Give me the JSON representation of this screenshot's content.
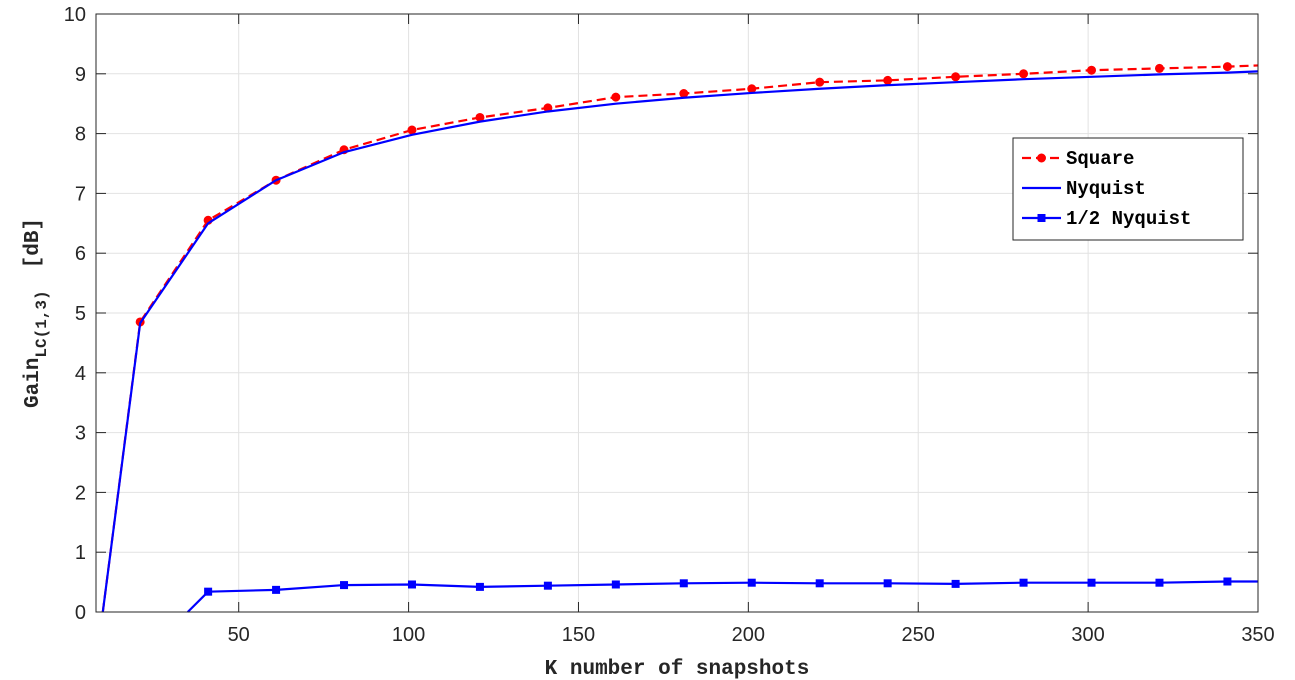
{
  "chart_data": {
    "type": "line",
    "title": "",
    "xlabel": "K number of snapshots",
    "ylabel_main": "Gain",
    "ylabel_sub": "LC(1,3)",
    "ylabel_unit": "[dB]",
    "xlim": [
      8,
      350
    ],
    "ylim": [
      0,
      10
    ],
    "xticks": [
      50,
      100,
      150,
      200,
      250,
      300,
      350
    ],
    "yticks": [
      0,
      1,
      2,
      3,
      4,
      5,
      6,
      7,
      8,
      9,
      10
    ],
    "grid": true,
    "legend_position": "right",
    "series": [
      {
        "name": "Square",
        "color": "#ff0000",
        "line_style": "dashed",
        "marker": "dot",
        "x": [
          10,
          21,
          41,
          61,
          81,
          101,
          121,
          141,
          161,
          181,
          201,
          221,
          241,
          261,
          281,
          301,
          321,
          341,
          350
        ],
        "y": [
          0,
          4.85,
          6.55,
          7.22,
          7.73,
          8.06,
          8.27,
          8.43,
          8.61,
          8.67,
          8.75,
          8.86,
          8.89,
          8.95,
          9.0,
          9.06,
          9.09,
          9.12,
          9.14
        ],
        "marker_indices": [
          1,
          2,
          3,
          4,
          5,
          6,
          7,
          8,
          9,
          10,
          11,
          12,
          13,
          14,
          15,
          16,
          17
        ]
      },
      {
        "name": "Nyquist",
        "color": "#0000ff",
        "line_style": "solid",
        "marker": "none",
        "x": [
          10,
          21,
          41,
          61,
          81,
          101,
          121,
          141,
          161,
          181,
          201,
          221,
          241,
          261,
          281,
          301,
          321,
          341,
          350
        ],
        "y": [
          0,
          4.83,
          6.5,
          7.22,
          7.69,
          7.98,
          8.2,
          8.37,
          8.5,
          8.6,
          8.68,
          8.75,
          8.81,
          8.86,
          8.91,
          8.95,
          8.99,
          9.02,
          9.04
        ],
        "marker_indices": []
      },
      {
        "name": "1/2 Nyquist",
        "color": "#0000ff",
        "line_style": "solid",
        "marker": "square",
        "x": [
          35,
          41,
          61,
          81,
          101,
          121,
          141,
          161,
          181,
          201,
          221,
          241,
          261,
          281,
          301,
          321,
          341,
          350
        ],
        "y": [
          0,
          0.34,
          0.37,
          0.45,
          0.46,
          0.42,
          0.44,
          0.46,
          0.48,
          0.49,
          0.48,
          0.48,
          0.47,
          0.49,
          0.49,
          0.49,
          0.51,
          0.51
        ],
        "marker_indices": [
          1,
          2,
          3,
          4,
          5,
          6,
          7,
          8,
          9,
          10,
          11,
          12,
          13,
          14,
          15,
          16
        ]
      }
    ]
  }
}
